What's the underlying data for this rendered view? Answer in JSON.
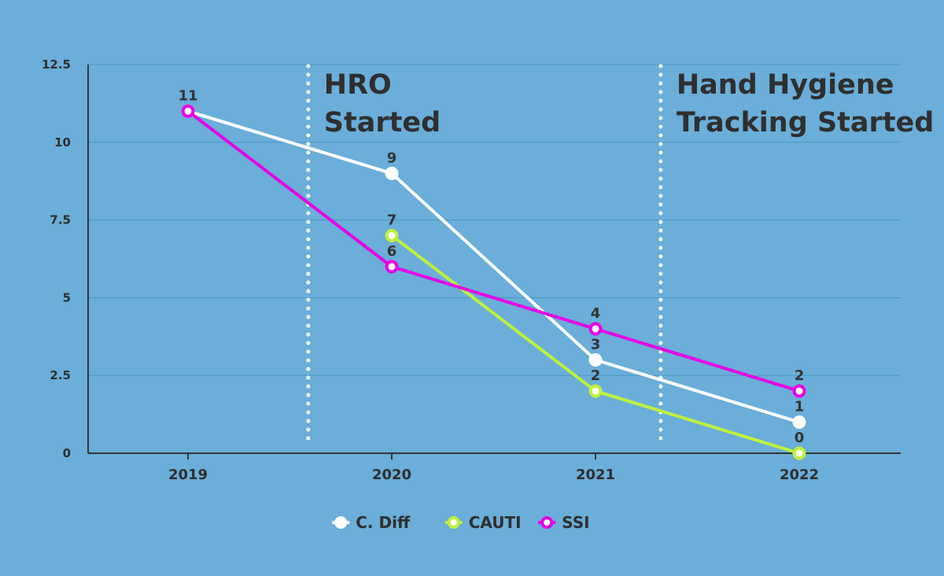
{
  "chart_data": {
    "type": "line",
    "categories": [
      "2019",
      "2020",
      "2021",
      "2022"
    ],
    "ylim": [
      0,
      12.5
    ],
    "yticks": [
      "0",
      "2.5",
      "5",
      "7.5",
      "10",
      "12.5"
    ],
    "grid": "horizontal",
    "legend_position": "bottom-center",
    "series": [
      {
        "name": "C. Diff",
        "color": "#ffffff",
        "values": [
          11,
          9,
          3,
          1
        ]
      },
      {
        "name": "CAUTI",
        "color": "#c0f03c",
        "values": [
          null,
          7,
          2,
          0
        ]
      },
      {
        "name": "SSI",
        "color": "#e600e6",
        "values": [
          11,
          6,
          4,
          2
        ]
      }
    ],
    "annotations": [
      {
        "lines": [
          "HRO",
          "Started"
        ],
        "x_between": [
          "2019",
          "2020"
        ],
        "position": 0.59
      },
      {
        "lines": [
          "Hand Hygiene",
          "Tracking Started"
        ],
        "x_between": [
          "2021",
          "2022"
        ],
        "position": 0.32
      }
    ]
  }
}
